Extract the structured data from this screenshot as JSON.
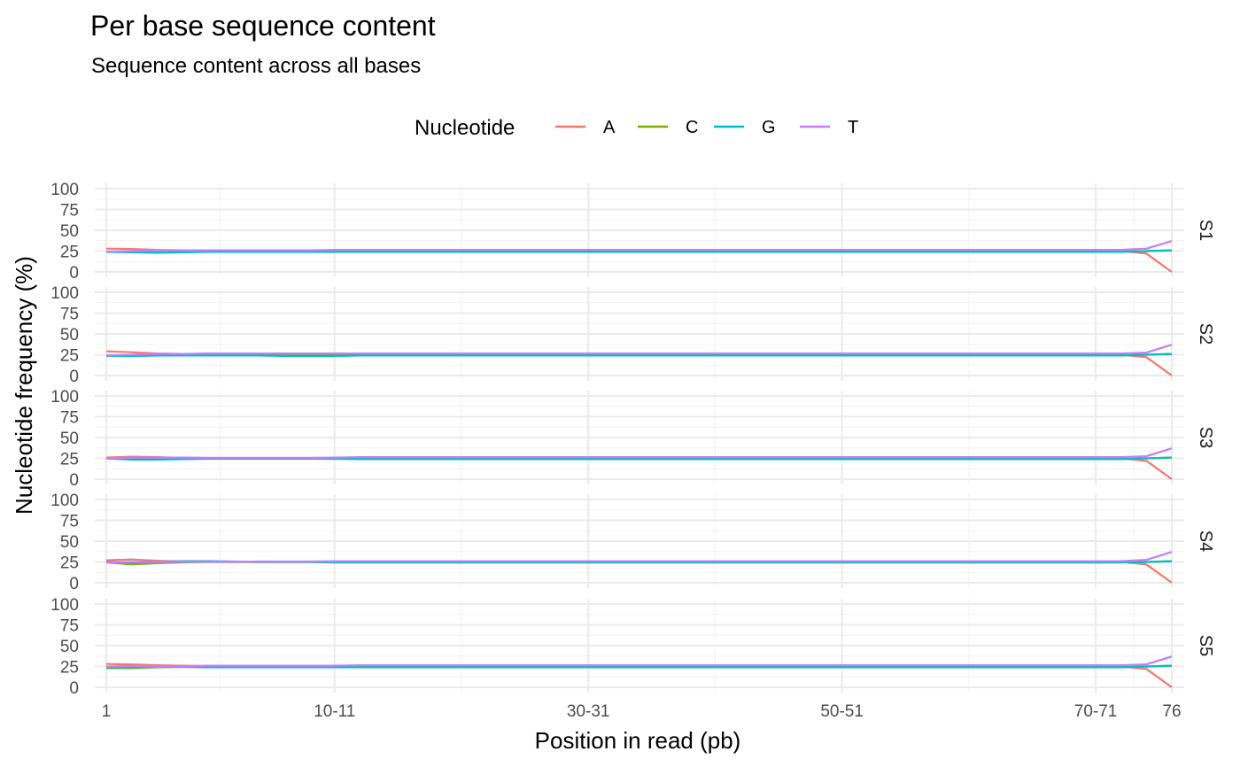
{
  "chart_data": {
    "type": "line",
    "title": "Per base sequence content",
    "subtitle": "Sequence content across all bases",
    "xlabel": "Position in read (pb)",
    "ylabel": "Nucleotide frequency (%)",
    "ylim": [
      0,
      100
    ],
    "y_ticks": [
      "0",
      "25",
      "50",
      "75",
      "100"
    ],
    "x_tick_labels": [
      "1",
      "10-11",
      "30-31",
      "50-51",
      "70-71",
      "76"
    ],
    "x_categories": [
      "1",
      "2",
      "3",
      "4",
      "5",
      "6",
      "7",
      "8",
      "9",
      "10-11",
      "12-13",
      "14-15",
      "16-17",
      "18-19",
      "20-21",
      "22-23",
      "24-25",
      "26-27",
      "28-29",
      "30-31",
      "32-33",
      "34-35",
      "36-37",
      "38-39",
      "40-41",
      "42-43",
      "44-45",
      "46-47",
      "48-49",
      "50-51",
      "52-53",
      "54-55",
      "56-57",
      "58-59",
      "60-61",
      "62-63",
      "64-65",
      "66-67",
      "68-69",
      "70-71",
      "72-73",
      "74-75",
      "76"
    ],
    "grid": true,
    "legend": {
      "title": "Nucleotide",
      "position": "top",
      "entries": [
        {
          "name": "A",
          "color": "#F8766D"
        },
        {
          "name": "C",
          "color": "#7CAE00"
        },
        {
          "name": "G",
          "color": "#00BFC4"
        },
        {
          "name": "T",
          "color": "#C77CFF"
        }
      ]
    },
    "facets": [
      {
        "label": "S1",
        "series": {
          "A": [
            28,
            27.5,
            26.5,
            26,
            25.5,
            25.5,
            25.5,
            25.5,
            25.5,
            25.5,
            25,
            25,
            25,
            25,
            25,
            25,
            25,
            25,
            25,
            25,
            25,
            25,
            25,
            25,
            25,
            25,
            25,
            25,
            25,
            25,
            25,
            25,
            25,
            25,
            25,
            25,
            25,
            25,
            25,
            25,
            25,
            22,
            0
          ],
          "C": [
            24,
            24,
            23.5,
            24,
            24,
            24.5,
            24.5,
            24.5,
            24.5,
            24.5,
            24.5,
            24.5,
            24.5,
            24.5,
            24.5,
            24.5,
            24.5,
            24.5,
            24.5,
            24.5,
            24.5,
            24.5,
            24.5,
            24.5,
            24.5,
            24.5,
            24.5,
            24.5,
            24.5,
            24.5,
            24.5,
            24.5,
            24.5,
            24.5,
            24.5,
            24.5,
            24.5,
            24.5,
            24.5,
            24.5,
            24.5,
            25,
            26
          ],
          "G": [
            24,
            23.5,
            23,
            23.5,
            24,
            24,
            24,
            24,
            24,
            24,
            24,
            24,
            24,
            24,
            24,
            24,
            24,
            24,
            24,
            24,
            24,
            24,
            24,
            24,
            24,
            24,
            24,
            24,
            24,
            24,
            24,
            24,
            24,
            24,
            24,
            24,
            24,
            24,
            24,
            24,
            24,
            25,
            26
          ],
          "T": [
            24.5,
            25,
            26,
            26,
            26,
            26,
            26,
            26,
            26,
            26.5,
            26.5,
            26.5,
            26.5,
            26.5,
            26.5,
            26.5,
            26.5,
            26.5,
            26.5,
            26.5,
            26.5,
            26.5,
            26.5,
            26.5,
            26.5,
            26.5,
            26.5,
            26.5,
            26.5,
            26.5,
            26.5,
            26.5,
            26.5,
            26.5,
            26.5,
            26.5,
            26.5,
            26.5,
            26.5,
            26.5,
            26.5,
            28,
            37
          ]
        }
      },
      {
        "label": "S2",
        "series": {
          "A": [
            29,
            28,
            26.5,
            26,
            25.5,
            25.5,
            25.5,
            25.5,
            25.5,
            25.5,
            25,
            25,
            25,
            25,
            25,
            25,
            25,
            25,
            25,
            25,
            25,
            25,
            25,
            25,
            25,
            25,
            25,
            25,
            25,
            25,
            25,
            25,
            25,
            25,
            25,
            25,
            25,
            25,
            25,
            25,
            25,
            22,
            0
          ],
          "C": [
            24,
            23.5,
            24,
            24,
            24,
            24.5,
            24.5,
            24.5,
            24.5,
            24.5,
            24.5,
            24.5,
            24.5,
            24.5,
            24.5,
            24.5,
            24.5,
            24.5,
            24.5,
            24.5,
            24.5,
            24.5,
            24.5,
            24.5,
            24.5,
            24.5,
            24.5,
            24.5,
            24.5,
            24.5,
            24.5,
            24.5,
            24.5,
            24.5,
            24.5,
            24.5,
            24.5,
            24.5,
            24.5,
            24.5,
            24.5,
            25,
            26
          ],
          "G": [
            23.5,
            23.5,
            24,
            24,
            24,
            24,
            24,
            23.5,
            23.5,
            23.5,
            24,
            24,
            24,
            24,
            24,
            24,
            24,
            24,
            24,
            24,
            24,
            24,
            24,
            24,
            24,
            24,
            24,
            24,
            24,
            24,
            24,
            24,
            24,
            24,
            24,
            24,
            24,
            24,
            24,
            24,
            24,
            25,
            26
          ],
          "T": [
            24,
            25,
            26,
            26,
            26.5,
            26.5,
            26.5,
            26.5,
            26.5,
            26.5,
            26.5,
            26.5,
            26.5,
            26.5,
            26.5,
            26.5,
            26.5,
            26.5,
            26.5,
            26.5,
            26.5,
            26.5,
            26.5,
            26.5,
            26.5,
            26.5,
            26.5,
            26.5,
            26.5,
            26.5,
            26.5,
            26.5,
            26.5,
            26.5,
            26.5,
            26.5,
            26.5,
            26.5,
            26.5,
            26.5,
            26.5,
            27.5,
            37
          ]
        }
      },
      {
        "label": "S3",
        "series": {
          "A": [
            26,
            27,
            26.5,
            25.5,
            25.5,
            25.5,
            25.5,
            25.5,
            25.5,
            25.5,
            25,
            25,
            25,
            25,
            25,
            25,
            25,
            25,
            25,
            25,
            25,
            25,
            25,
            25,
            25,
            25,
            25,
            25,
            25,
            25,
            25,
            25,
            25,
            25,
            25,
            25,
            25,
            25,
            25,
            25,
            25,
            22,
            0
          ],
          "C": [
            25,
            24,
            24,
            24.5,
            25,
            25,
            25,
            25,
            25,
            24.5,
            24.5,
            24.5,
            24.5,
            24.5,
            24.5,
            24.5,
            24.5,
            24.5,
            24.5,
            24.5,
            24.5,
            24.5,
            24.5,
            24.5,
            24.5,
            24.5,
            24.5,
            24.5,
            24.5,
            24.5,
            24.5,
            24.5,
            24.5,
            24.5,
            24.5,
            24.5,
            24.5,
            24.5,
            24.5,
            24.5,
            24.5,
            25,
            26
          ],
          "G": [
            25,
            23.5,
            23.5,
            24,
            24.5,
            24.5,
            24.5,
            24.5,
            24.5,
            24.5,
            24,
            24,
            24,
            24,
            24,
            24,
            24,
            24,
            24,
            24,
            24,
            24,
            24,
            24,
            24,
            24,
            24,
            24,
            24,
            24,
            24,
            24,
            24,
            24,
            24,
            24,
            24,
            24,
            24,
            24,
            24,
            25,
            26
          ],
          "T": [
            25,
            26,
            26,
            26,
            25.5,
            25.5,
            25.5,
            25.5,
            25.5,
            26,
            26.5,
            26.5,
            26.5,
            26.5,
            26.5,
            26.5,
            26.5,
            26.5,
            26.5,
            26.5,
            26.5,
            26.5,
            26.5,
            26.5,
            26.5,
            26.5,
            26.5,
            26.5,
            26.5,
            26.5,
            26.5,
            26.5,
            26.5,
            26.5,
            26.5,
            26.5,
            26.5,
            26.5,
            26.5,
            26.5,
            26.5,
            27.5,
            37
          ]
        }
      },
      {
        "label": "S4",
        "series": {
          "A": [
            27,
            28,
            26.5,
            25.5,
            25.5,
            25,
            25,
            25,
            25,
            25,
            25,
            25,
            25,
            25,
            25,
            25,
            25,
            25,
            25,
            25,
            25,
            25,
            25,
            25,
            25,
            25,
            25,
            25,
            25,
            25,
            25,
            25,
            25,
            25,
            25,
            25,
            25,
            25,
            25,
            25,
            25,
            22,
            0
          ],
          "C": [
            24.5,
            22,
            23.5,
            24.5,
            25,
            25,
            25,
            25,
            25,
            24.5,
            24.5,
            24.5,
            24.5,
            24.5,
            24.5,
            24.5,
            24.5,
            24.5,
            24.5,
            24.5,
            24.5,
            24.5,
            24.5,
            24.5,
            24.5,
            24.5,
            24.5,
            24.5,
            24.5,
            24.5,
            24.5,
            24.5,
            24.5,
            24.5,
            24.5,
            24.5,
            24.5,
            24.5,
            24.5,
            24.5,
            24.5,
            25,
            26
          ],
          "G": [
            25,
            24,
            25,
            26,
            26,
            25.5,
            25,
            25,
            25,
            24.5,
            24.5,
            24.5,
            24.5,
            24.5,
            24.5,
            24.5,
            24.5,
            24.5,
            24.5,
            24.5,
            24.5,
            24.5,
            24.5,
            24.5,
            24.5,
            24.5,
            24.5,
            24.5,
            24.5,
            24.5,
            24.5,
            24.5,
            24.5,
            24.5,
            24.5,
            24.5,
            24.5,
            24.5,
            24.5,
            24.5,
            24.5,
            25,
            26
          ],
          "T": [
            24.5,
            25,
            25,
            25,
            25,
            25,
            25.5,
            25.5,
            25.5,
            26,
            26,
            26,
            26,
            26,
            26,
            26,
            26,
            26,
            26,
            26,
            26,
            26,
            26,
            26,
            26,
            26,
            26,
            26,
            26,
            26,
            26,
            26,
            26,
            26,
            26,
            26,
            26,
            26,
            26,
            26,
            26,
            27.5,
            37
          ]
        }
      },
      {
        "label": "S5",
        "series": {
          "A": [
            28,
            27.5,
            26.5,
            26,
            25.5,
            25.5,
            25.5,
            25.5,
            25.5,
            25.5,
            25,
            25,
            25,
            25,
            25,
            25,
            25,
            25,
            25,
            25,
            25,
            25,
            25,
            25,
            25,
            25,
            25,
            25,
            25,
            25,
            25,
            25,
            25,
            25,
            25,
            25,
            25,
            25,
            25,
            25,
            25,
            22,
            0
          ],
          "C": [
            23,
            23,
            24,
            24.5,
            24.5,
            24.5,
            24.5,
            24.5,
            24.5,
            24.5,
            24.5,
            24.5,
            24.5,
            24.5,
            24.5,
            24.5,
            24.5,
            24.5,
            24.5,
            24.5,
            24.5,
            24.5,
            24.5,
            24.5,
            24.5,
            24.5,
            24.5,
            24.5,
            24.5,
            24.5,
            24.5,
            24.5,
            24.5,
            24.5,
            24.5,
            24.5,
            24.5,
            24.5,
            24.5,
            24.5,
            24.5,
            25,
            26
          ],
          "G": [
            24,
            24,
            24.5,
            24.5,
            24,
            24,
            24,
            24,
            24,
            24,
            24,
            24,
            24,
            24,
            24,
            24,
            24,
            24,
            24,
            24,
            24,
            24,
            24,
            24,
            24,
            24,
            24,
            24,
            24,
            24,
            24,
            24,
            24,
            24,
            24,
            24,
            24,
            24,
            24,
            24,
            24,
            25,
            26
          ],
          "T": [
            25,
            25.5,
            25,
            25,
            26,
            26,
            26,
            26,
            26,
            26,
            26.5,
            26.5,
            26.5,
            26.5,
            26.5,
            26.5,
            26.5,
            26.5,
            26.5,
            26.5,
            26.5,
            26.5,
            26.5,
            26.5,
            26.5,
            26.5,
            26.5,
            26.5,
            26.5,
            26.5,
            26.5,
            26.5,
            26.5,
            26.5,
            26.5,
            26.5,
            26.5,
            26.5,
            26.5,
            26.5,
            26.5,
            27.5,
            37
          ]
        }
      }
    ]
  }
}
